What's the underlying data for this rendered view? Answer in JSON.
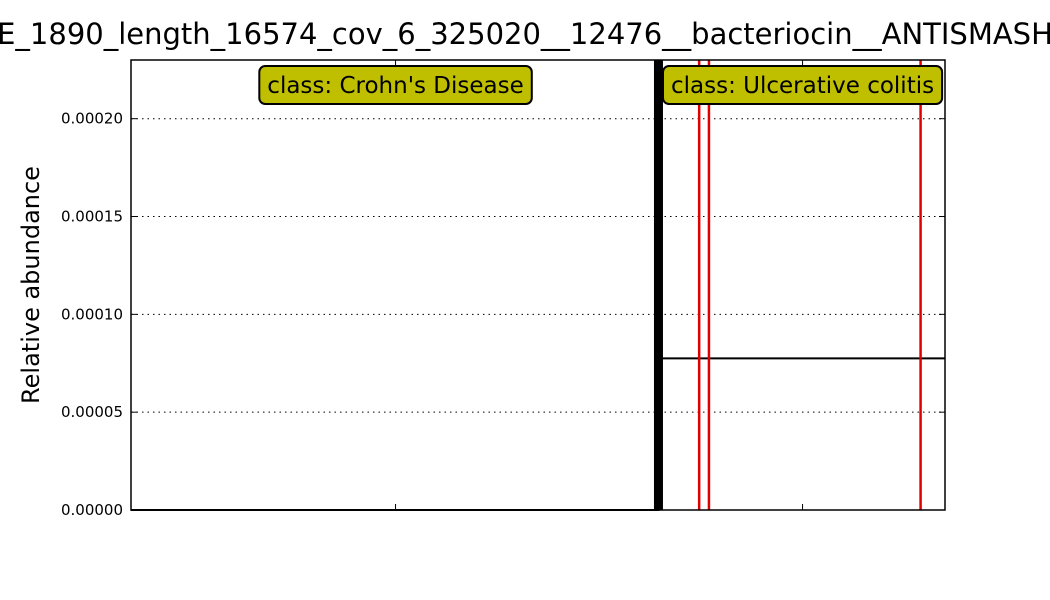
{
  "chart_data": {
    "type": "line",
    "title": "E_1890_length_16574_cov_6_325020__12476__bacteriocin__ANTISMASH",
    "xlabel": "",
    "ylabel": "Relative abundance",
    "ylim": [
      0,
      0.00023
    ],
    "yticks": [
      "0.00000",
      "0.00005",
      "0.00010",
      "0.00015",
      "0.00020"
    ],
    "ytick_values": [
      0,
      5e-05,
      0.0001,
      0.00015,
      0.0002
    ],
    "grid": "y-dotted",
    "xlim": [
      0,
      100
    ],
    "xticks_minor": [
      32.5,
      82.5
    ],
    "series": [
      {
        "role": "abundance",
        "color": "#000000",
        "points": [
          [
            0,
            0
          ],
          [
            64.8,
            0
          ],
          [
            64.8,
            7.75e-05
          ],
          [
            100,
            7.75e-05
          ]
        ]
      }
    ],
    "class_separator": {
      "x": 64.8,
      "color": "#000000"
    },
    "markers": {
      "color": "#e00000",
      "x": [
        69.8,
        71.0,
        97.0
      ]
    },
    "annotations": [
      {
        "text": "class: Crohn's Disease",
        "x": 32.5,
        "color": "#bfbf00"
      },
      {
        "text": "class: Ulcerative colitis",
        "x": 82.5,
        "color": "#bfbf00"
      }
    ]
  }
}
